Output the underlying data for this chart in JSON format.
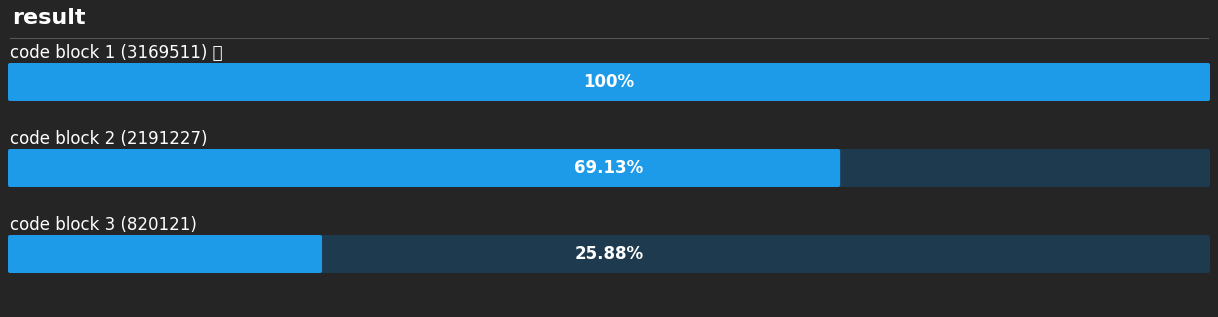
{
  "title": "result",
  "background_color": "#252525",
  "title_color": "#ffffff",
  "title_fontsize": 16,
  "bar_bg_color": "#1e3a4f",
  "bar_fill_color": "#1e9be8",
  "bar_text_color": "#ffffff",
  "separator_color": "#555555",
  "label_color": "#ffffff",
  "label_fontsize": 12,
  "bar_text_fontsize": 12,
  "bars": [
    {
      "label": "code block 1 (3169511) 🏆",
      "value": 100.0,
      "display": "100%"
    },
    {
      "label": "code block 2 (2191227)",
      "value": 69.13,
      "display": "69.13%"
    },
    {
      "label": "code block 3 (820121)",
      "value": 25.88,
      "display": "25.88%"
    }
  ]
}
